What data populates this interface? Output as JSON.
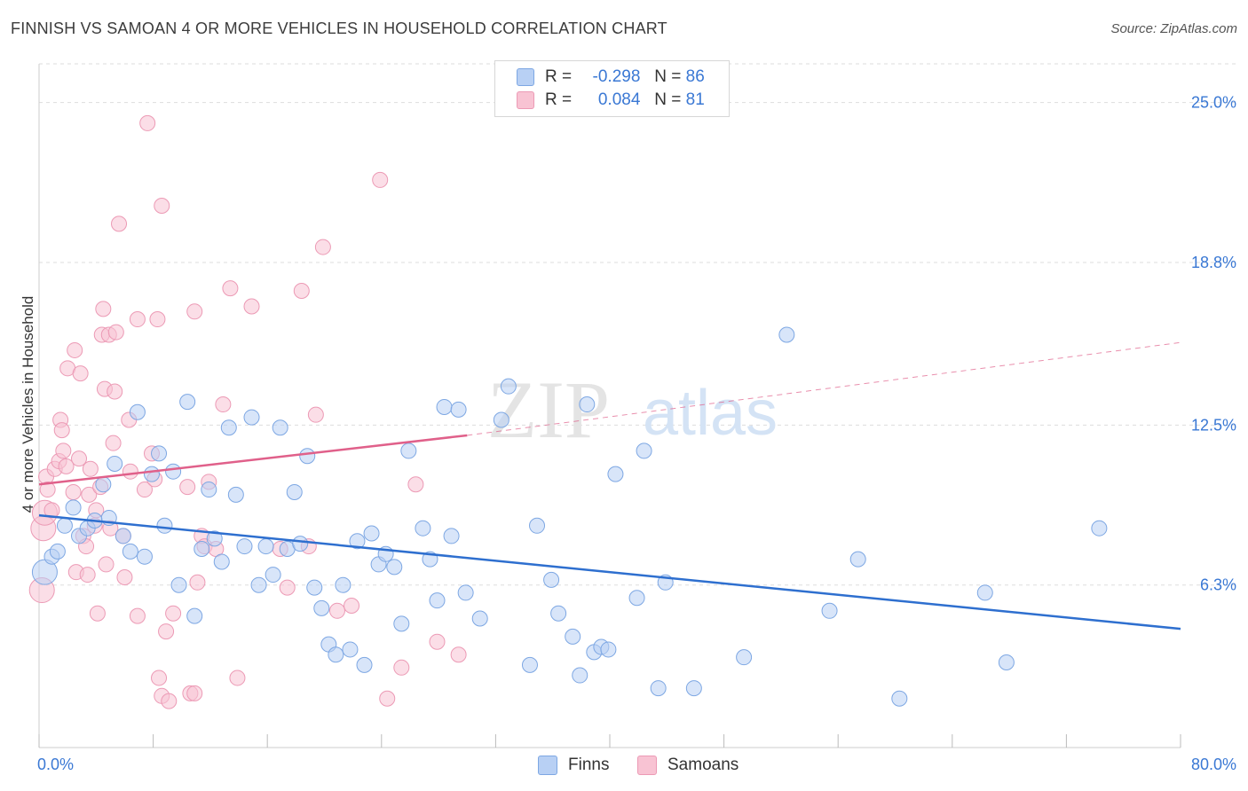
{
  "header": {
    "title": "FINNISH VS SAMOAN 4 OR MORE VEHICLES IN HOUSEHOLD CORRELATION CHART",
    "source": "Source: ZipAtlas.com"
  },
  "legend": {
    "finns": {
      "r_label": "R =",
      "r_value": "-0.298",
      "n_label": "N =",
      "n_value": "86"
    },
    "samoans": {
      "r_label": "R =",
      "r_value": "0.084",
      "n_label": "N =",
      "n_value": "81"
    }
  },
  "watermark": {
    "zip": "ZIP",
    "atlas": "atlas"
  },
  "colors": {
    "finns_fill": "#b8d0f4",
    "finns_stroke": "#7da7e3",
    "finns_line": "#2e6fcf",
    "samoans_fill": "#f8c3d3",
    "samoans_stroke": "#ec9ab5",
    "samoans_line": "#e0608a",
    "axis_text": "#3a78d4",
    "grid": "#dddddd"
  },
  "chart_data": {
    "type": "scatter",
    "title": "FINNISH VS SAMOAN 4 OR MORE VEHICLES IN HOUSEHOLD CORRELATION CHART",
    "xlabel": "",
    "ylabel": "4 or more Vehicles in Household",
    "xlim": [
      0,
      80
    ],
    "ylim": [
      0,
      26.5
    ],
    "x_tick_labels": [
      "0.0%",
      "80.0%"
    ],
    "y_ticks": [
      6.3,
      12.5,
      18.8,
      25.0
    ],
    "y_tick_labels": [
      "6.3%",
      "12.5%",
      "18.8%",
      "25.0%"
    ],
    "grid": "horizontal dashed",
    "legend_position": "top-center",
    "series": [
      {
        "name": "Finns",
        "points": [
          [
            0.4,
            6.8
          ],
          [
            0.9,
            7.4
          ],
          [
            1.3,
            7.6
          ],
          [
            1.8,
            8.6
          ],
          [
            2.4,
            9.3
          ],
          [
            2.8,
            8.2
          ],
          [
            3.4,
            8.5
          ],
          [
            3.9,
            8.8
          ],
          [
            4.5,
            10.2
          ],
          [
            4.9,
            8.9
          ],
          [
            5.3,
            11.0
          ],
          [
            5.9,
            8.2
          ],
          [
            6.4,
            7.6
          ],
          [
            6.9,
            13.0
          ],
          [
            7.4,
            7.4
          ],
          [
            7.9,
            10.6
          ],
          [
            8.4,
            11.4
          ],
          [
            8.8,
            8.6
          ],
          [
            9.4,
            10.7
          ],
          [
            9.8,
            6.3
          ],
          [
            10.4,
            13.4
          ],
          [
            10.9,
            5.1
          ],
          [
            11.4,
            7.7
          ],
          [
            11.9,
            10.0
          ],
          [
            12.3,
            8.1
          ],
          [
            12.8,
            7.2
          ],
          [
            13.3,
            12.4
          ],
          [
            13.8,
            9.8
          ],
          [
            14.4,
            7.8
          ],
          [
            14.9,
            12.8
          ],
          [
            15.4,
            6.3
          ],
          [
            15.9,
            7.8
          ],
          [
            16.4,
            6.7
          ],
          [
            16.9,
            12.4
          ],
          [
            17.4,
            7.7
          ],
          [
            17.9,
            9.9
          ],
          [
            18.3,
            7.9
          ],
          [
            18.8,
            11.3
          ],
          [
            19.3,
            6.2
          ],
          [
            19.8,
            5.4
          ],
          [
            20.3,
            4.0
          ],
          [
            20.8,
            3.6
          ],
          [
            21.3,
            6.3
          ],
          [
            21.8,
            3.8
          ],
          [
            22.3,
            8.0
          ],
          [
            22.8,
            3.2
          ],
          [
            23.3,
            8.3
          ],
          [
            23.8,
            7.1
          ],
          [
            24.3,
            7.5
          ],
          [
            24.9,
            7.0
          ],
          [
            25.4,
            4.8
          ],
          [
            25.9,
            11.5
          ],
          [
            26.9,
            8.5
          ],
          [
            27.4,
            7.3
          ],
          [
            27.9,
            5.7
          ],
          [
            28.4,
            13.2
          ],
          [
            28.9,
            8.2
          ],
          [
            29.4,
            13.1
          ],
          [
            29.9,
            6.0
          ],
          [
            30.9,
            5.0
          ],
          [
            32.4,
            12.7
          ],
          [
            32.9,
            14.0
          ],
          [
            34.4,
            3.2
          ],
          [
            34.9,
            8.6
          ],
          [
            35.9,
            6.5
          ],
          [
            36.4,
            5.2
          ],
          [
            37.4,
            4.3
          ],
          [
            37.9,
            2.8
          ],
          [
            38.4,
            13.3
          ],
          [
            38.9,
            3.7
          ],
          [
            39.4,
            3.9
          ],
          [
            39.9,
            3.8
          ],
          [
            40.4,
            10.6
          ],
          [
            41.9,
            5.8
          ],
          [
            42.4,
            11.5
          ],
          [
            43.4,
            2.3
          ],
          [
            43.9,
            6.4
          ],
          [
            45.9,
            2.3
          ],
          [
            49.4,
            3.5
          ],
          [
            52.4,
            16.0
          ],
          [
            55.4,
            5.3
          ],
          [
            57.4,
            7.3
          ],
          [
            60.3,
            1.9
          ],
          [
            66.3,
            6.0
          ],
          [
            67.8,
            3.3
          ],
          [
            74.3,
            8.5
          ]
        ]
      },
      {
        "name": "Samoans",
        "points": [
          [
            0.2,
            6.1
          ],
          [
            0.3,
            8.5
          ],
          [
            0.4,
            9.1
          ],
          [
            0.5,
            10.5
          ],
          [
            0.6,
            10.0
          ],
          [
            0.9,
            9.2
          ],
          [
            1.1,
            10.8
          ],
          [
            1.4,
            11.1
          ],
          [
            1.5,
            12.7
          ],
          [
            1.6,
            12.3
          ],
          [
            1.7,
            11.5
          ],
          [
            1.9,
            10.9
          ],
          [
            2.0,
            14.7
          ],
          [
            2.4,
            9.9
          ],
          [
            2.5,
            15.4
          ],
          [
            2.6,
            6.8
          ],
          [
            2.8,
            11.2
          ],
          [
            2.9,
            14.5
          ],
          [
            3.1,
            8.2
          ],
          [
            3.3,
            7.8
          ],
          [
            3.4,
            6.7
          ],
          [
            3.5,
            9.8
          ],
          [
            3.6,
            10.8
          ],
          [
            3.9,
            8.6
          ],
          [
            4.0,
            9.2
          ],
          [
            4.1,
            5.2
          ],
          [
            4.3,
            10.1
          ],
          [
            4.4,
            16.0
          ],
          [
            4.5,
            17.0
          ],
          [
            4.6,
            13.9
          ],
          [
            4.7,
            7.1
          ],
          [
            4.9,
            16.0
          ],
          [
            5.0,
            8.5
          ],
          [
            5.2,
            11.8
          ],
          [
            5.3,
            13.8
          ],
          [
            5.4,
            16.1
          ],
          [
            5.6,
            20.3
          ],
          [
            5.9,
            8.2
          ],
          [
            6.0,
            6.6
          ],
          [
            6.3,
            12.7
          ],
          [
            6.4,
            10.7
          ],
          [
            6.9,
            16.6
          ],
          [
            6.9,
            5.1
          ],
          [
            7.4,
            10.0
          ],
          [
            7.6,
            24.2
          ],
          [
            7.9,
            11.4
          ],
          [
            8.1,
            10.4
          ],
          [
            8.3,
            16.6
          ],
          [
            8.4,
            2.7
          ],
          [
            8.6,
            21.0
          ],
          [
            8.6,
            2.0
          ],
          [
            8.9,
            4.5
          ],
          [
            9.1,
            1.8
          ],
          [
            9.4,
            5.2
          ],
          [
            10.4,
            10.1
          ],
          [
            10.6,
            2.1
          ],
          [
            10.9,
            16.9
          ],
          [
            10.9,
            2.1
          ],
          [
            11.1,
            6.4
          ],
          [
            11.4,
            8.2
          ],
          [
            11.6,
            7.8
          ],
          [
            11.9,
            10.3
          ],
          [
            12.4,
            7.7
          ],
          [
            12.9,
            13.3
          ],
          [
            13.4,
            17.8
          ],
          [
            13.9,
            2.7
          ],
          [
            14.9,
            17.1
          ],
          [
            16.9,
            7.7
          ],
          [
            17.4,
            6.2
          ],
          [
            18.4,
            17.7
          ],
          [
            18.9,
            7.8
          ],
          [
            19.4,
            12.9
          ],
          [
            19.9,
            19.4
          ],
          [
            20.9,
            5.3
          ],
          [
            21.9,
            5.5
          ],
          [
            23.9,
            22.0
          ],
          [
            24.4,
            1.9
          ],
          [
            25.4,
            3.1
          ],
          [
            26.4,
            10.2
          ],
          [
            27.9,
            4.1
          ],
          [
            29.4,
            3.6
          ]
        ]
      }
    ],
    "trendlines": [
      {
        "series": "Finns",
        "x": [
          0,
          80
        ],
        "y": [
          9.0,
          4.6
        ],
        "style": "solid"
      },
      {
        "series": "Samoans",
        "x": [
          0,
          30
        ],
        "y": [
          10.2,
          12.1
        ],
        "style": "solid"
      },
      {
        "series": "Samoans",
        "x": [
          30,
          80
        ],
        "y": [
          12.1,
          15.7
        ],
        "style": "dashed"
      }
    ]
  },
  "bottom_legend": {
    "finns": "Finns",
    "samoans": "Samoans"
  }
}
